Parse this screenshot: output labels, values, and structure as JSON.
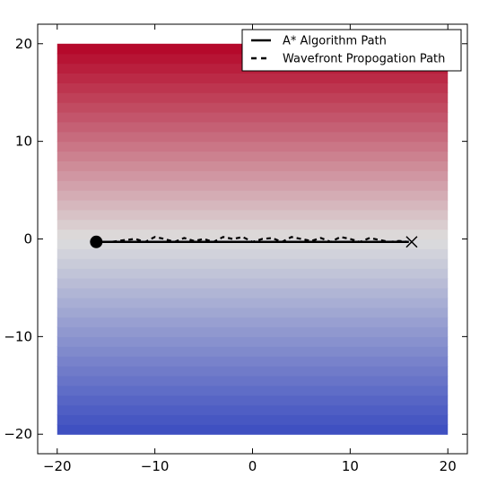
{
  "chart_data": {
    "type": "heatmap",
    "title": "",
    "xlabel": "",
    "ylabel": "",
    "xlim": [
      -22,
      22
    ],
    "ylim": [
      -22,
      22
    ],
    "xticks": [
      -20,
      -10,
      0,
      10,
      20
    ],
    "yticks": [
      -20,
      -10,
      0,
      10,
      20
    ],
    "xtick_labels": [
      "−20",
      "−10",
      "0",
      "10",
      "20"
    ],
    "ytick_labels": [
      "−20",
      "−10",
      "0",
      "10",
      "20"
    ],
    "grid": false,
    "legend_position": "top-right",
    "heatmap": {
      "x_range": [
        -20,
        20
      ],
      "y_range": [
        -20,
        20
      ],
      "bands": 40,
      "colormap": "coolwarm",
      "value_increases_with": "y",
      "low_color": "#3b4cc0",
      "mid_color": "#dddddd",
      "high_color": "#b40426"
    },
    "series": [
      {
        "name": "A* Algorithm Path",
        "style": "solid",
        "color": "#000000",
        "x": [
          -16,
          16
        ],
        "y": [
          -0.3,
          -0.3
        ]
      },
      {
        "name": "Wavefront Propogation Path",
        "style": "dashed",
        "color": "#000000",
        "x": [
          -16,
          -14.5,
          -13,
          -12,
          -11,
          -10,
          -9,
          -8,
          -7,
          -6,
          -5,
          -4,
          -3,
          -2,
          -1,
          0,
          1,
          2,
          3,
          4,
          5,
          6,
          7,
          8,
          9,
          10,
          11,
          12,
          13,
          14,
          15,
          16
        ],
        "y": [
          -0.3,
          -0.3,
          -0.1,
          0.0,
          -0.3,
          0.2,
          0.0,
          -0.3,
          0.1,
          -0.2,
          0.0,
          -0.3,
          0.2,
          0.0,
          0.2,
          -0.3,
          0.0,
          0.1,
          -0.3,
          0.2,
          0.0,
          -0.2,
          0.1,
          -0.3,
          0.2,
          0.0,
          -0.3,
          0.1,
          -0.1,
          -0.3,
          -0.2,
          -0.3
        ]
      }
    ],
    "markers": [
      {
        "role": "start",
        "shape": "circle",
        "x": -16,
        "y": -0.3
      },
      {
        "role": "goal",
        "shape": "x",
        "x": 16.3,
        "y": -0.3
      }
    ]
  }
}
